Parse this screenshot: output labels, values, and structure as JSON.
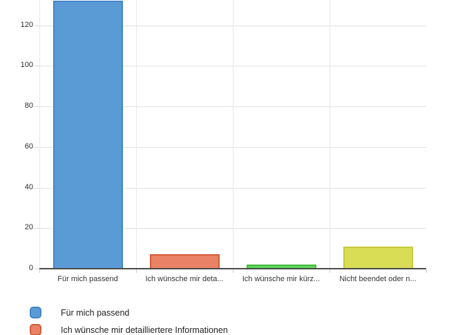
{
  "chart_data": {
    "type": "bar",
    "categories": [
      "Für mich passend",
      "Ich wünsche mir deta...",
      "Ich wünsche mir kürz...",
      "Nicht beendet oder n..."
    ],
    "values": [
      132,
      7,
      2,
      11
    ],
    "first_bar_top_clipped": true,
    "bar_colors": [
      {
        "fill": "#5b9bd5",
        "border": "#4185c5"
      },
      {
        "fill": "#ea8266",
        "border": "#d15b38"
      },
      {
        "fill": "#5ed65b",
        "border": "#44ba3f"
      },
      {
        "fill": "#d9dc55",
        "border": "#c6ca3a"
      }
    ],
    "title": "",
    "xlabel": "",
    "ylabel": "",
    "yticks": [
      0,
      20,
      40,
      60,
      80,
      100,
      120
    ],
    "ylim": [
      0,
      132
    ],
    "grid": true,
    "legend_position": "bottom-left",
    "legend": [
      {
        "label": "Für mich passend",
        "fill": "#5b9bd5",
        "border": "#4185c5"
      },
      {
        "label": "Ich wünsche mir detailliertere Informationen",
        "fill": "#ea8266",
        "border": "#d15b38"
      }
    ],
    "colors": {
      "grid": "#e2e2e2",
      "axis": "#4a4a4a",
      "tick": "#cccccc",
      "axis_text": "#2c2c2c"
    }
  }
}
